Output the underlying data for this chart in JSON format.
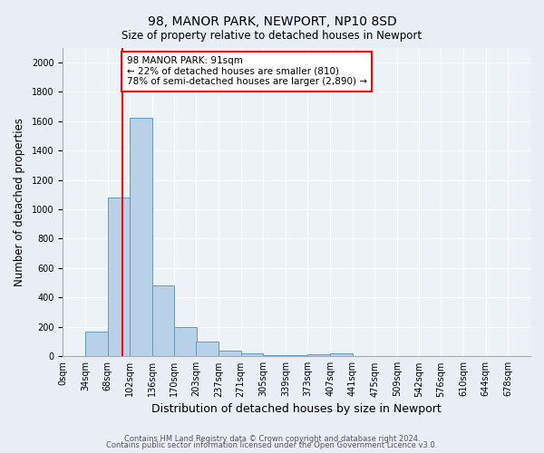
{
  "title": "98, MANOR PARK, NEWPORT, NP10 8SD",
  "subtitle": "Size of property relative to detached houses in Newport",
  "xlabel": "Distribution of detached houses by size in Newport",
  "ylabel": "Number of detached properties",
  "bar_labels": [
    "0sqm",
    "34sqm",
    "68sqm",
    "102sqm",
    "136sqm",
    "170sqm",
    "203sqm",
    "237sqm",
    "271sqm",
    "305sqm",
    "339sqm",
    "373sqm",
    "407sqm",
    "441sqm",
    "475sqm",
    "509sqm",
    "542sqm",
    "576sqm",
    "610sqm",
    "644sqm",
    "678sqm"
  ],
  "bar_values": [
    0,
    170,
    1080,
    1620,
    480,
    200,
    100,
    40,
    20,
    10,
    10,
    15,
    20,
    0,
    0,
    0,
    0,
    0,
    0,
    0,
    0
  ],
  "bar_color": "#b8d0e8",
  "bar_edge_color": "#6699bb",
  "bin_width": 34,
  "property_line_x": 91,
  "annotation_text": "98 MANOR PARK: 91sqm\n← 22% of detached houses are smaller (810)\n78% of semi-detached houses are larger (2,890) →",
  "annotation_box_color": "white",
  "annotation_box_edge_color": "red",
  "vline_color": "red",
  "ylim": [
    0,
    2100
  ],
  "yticks": [
    0,
    200,
    400,
    600,
    800,
    1000,
    1200,
    1400,
    1600,
    1800,
    2000
  ],
  "xlim_max": 712,
  "footnote1": "Contains HM Land Registry data © Crown copyright and database right 2024.",
  "footnote2": "Contains public sector information licensed under the Open Government Licence v3.0.",
  "bg_color": "#e8eef4",
  "plot_bg_color": "#edf2f7",
  "title_fontsize": 10,
  "subtitle_fontsize": 8.5,
  "xlabel_fontsize": 9,
  "ylabel_fontsize": 8.5,
  "tick_fontsize": 7,
  "annot_fontsize": 7.5,
  "footnote_fontsize": 6
}
